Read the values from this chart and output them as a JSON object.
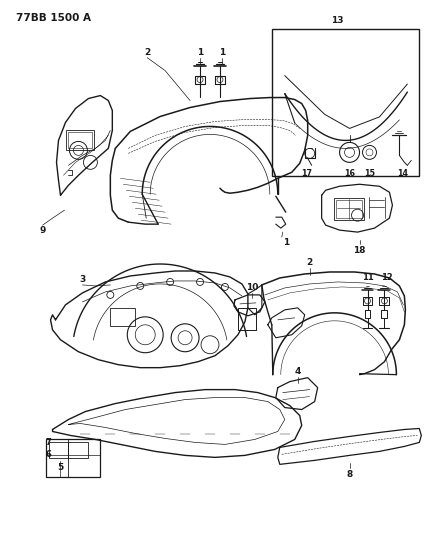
{
  "title": "77BB 1500 A",
  "bg_color": "#ffffff",
  "line_color": "#1a1a1a",
  "fig_width": 4.28,
  "fig_height": 5.33,
  "dpi": 100,
  "title_fontsize": 7.5,
  "label_fontsize": 6.0
}
